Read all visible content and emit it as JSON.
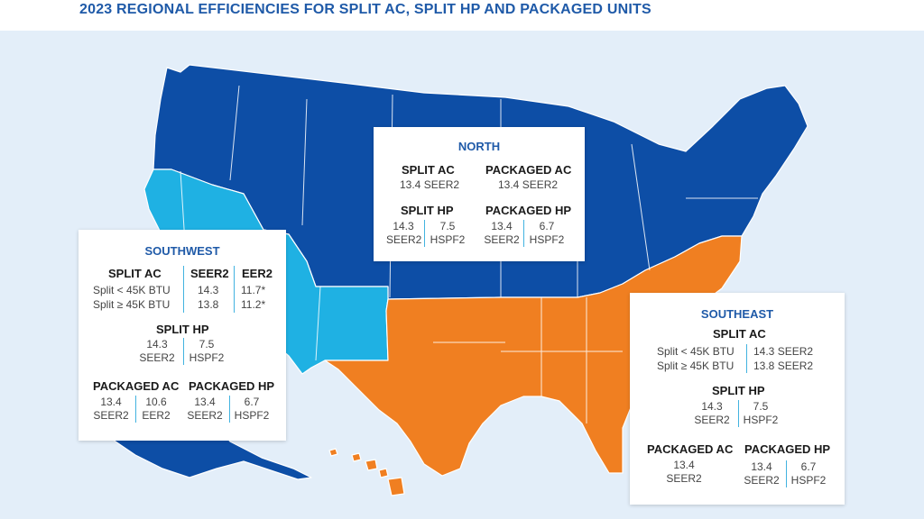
{
  "title": "2023 REGIONAL EFFICIENCIES FOR SPLIT AC, SPLIT HP AND PACKAGED UNITS",
  "colors": {
    "north": "#0d4ea6",
    "southwest": "#1fb1e3",
    "southeast": "#f07f21",
    "background": "#e3eef9",
    "accent": "#1f5aa8"
  },
  "north": {
    "region": "NORTH",
    "split_ac": {
      "label": "SPLIT AC",
      "value": "13.4 SEER2"
    },
    "packaged_ac": {
      "label": "PACKAGED AC",
      "value": "13.4 SEER2"
    },
    "split_hp": {
      "label": "SPLIT HP",
      "seer2": "14.3",
      "seer2_unit": "SEER2",
      "hspf2": "7.5",
      "hspf2_unit": "HSPF2"
    },
    "packaged_hp": {
      "label": "PACKAGED HP",
      "seer2": "13.4",
      "seer2_unit": "SEER2",
      "hspf2": "6.7",
      "hspf2_unit": "HSPF2"
    }
  },
  "southwest": {
    "region": "SOUTHWEST",
    "split_ac": {
      "label": "SPLIT AC",
      "col_seer2": "SEER2",
      "col_eer2": "EER2",
      "rows": [
        {
          "name": "Split < 45K BTU",
          "seer2": "14.3",
          "eer2": "11.7*"
        },
        {
          "name": "Split ≥ 45K BTU",
          "seer2": "13.8",
          "eer2": "11.2*"
        }
      ]
    },
    "split_hp": {
      "label": "SPLIT HP",
      "seer2": "14.3",
      "seer2_unit": "SEER2",
      "hspf2": "7.5",
      "hspf2_unit": "HSPF2"
    },
    "packaged_ac": {
      "label": "PACKAGED AC",
      "seer2": "13.4",
      "seer2_unit": "SEER2",
      "eer2": "10.6",
      "eer2_unit": "EER2"
    },
    "packaged_hp": {
      "label": "PACKAGED HP",
      "seer2": "13.4",
      "seer2_unit": "SEER2",
      "hspf2": "6.7",
      "hspf2_unit": "HSPF2"
    }
  },
  "southeast": {
    "region": "SOUTHEAST",
    "split_ac": {
      "label": "SPLIT AC",
      "rows": [
        {
          "name": "Split < 45K BTU",
          "value": "14.3 SEER2"
        },
        {
          "name": "Split ≥ 45K BTU",
          "value": "13.8 SEER2"
        }
      ]
    },
    "split_hp": {
      "label": "SPLIT HP",
      "seer2": "14.3",
      "seer2_unit": "SEER2",
      "hspf2": "7.5",
      "hspf2_unit": "HSPF2"
    },
    "packaged_ac": {
      "label": "PACKAGED AC",
      "seer2": "13.4",
      "seer2_unit": "SEER2"
    },
    "packaged_hp": {
      "label": "PACKAGED HP",
      "seer2": "13.4",
      "seer2_unit": "SEER2",
      "hspf2": "6.7",
      "hspf2_unit": "HSPF2"
    }
  }
}
